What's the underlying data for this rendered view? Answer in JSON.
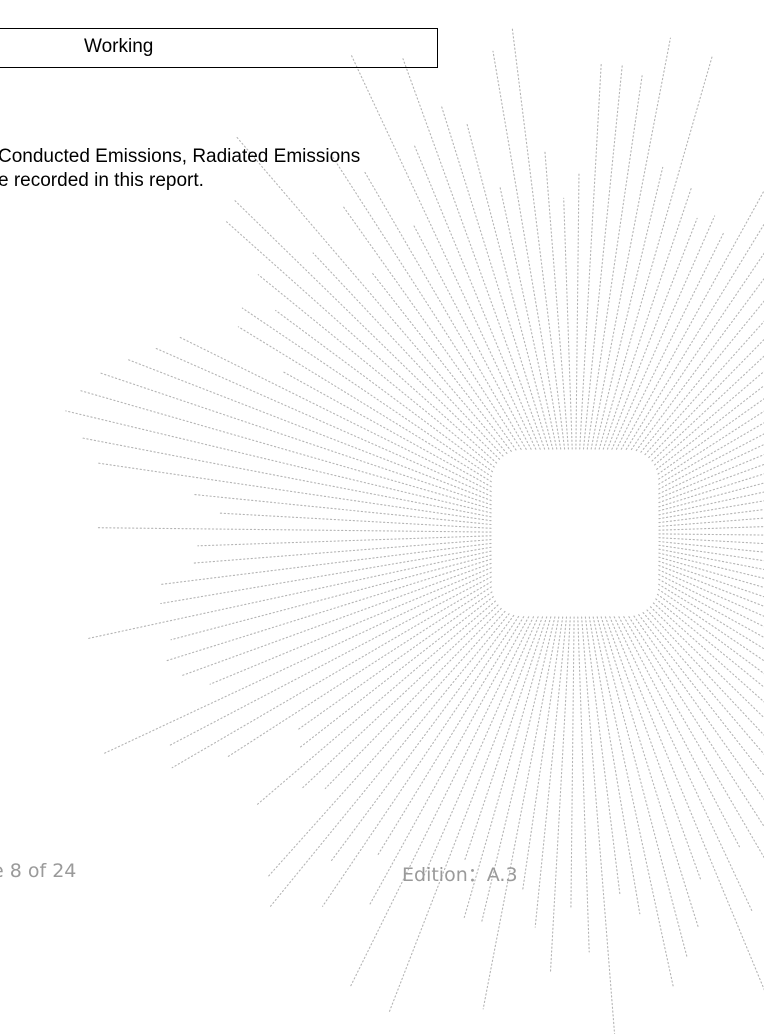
{
  "status": {
    "label": "Working"
  },
  "body": {
    "line1": "Conducted Emissions, Radiated Emissions",
    "line2": "e recorded in this report."
  },
  "footer": {
    "page": "e 8 of 24",
    "edition": "Edition：A.3"
  },
  "colors": {
    "watermark": "#b4b4b4",
    "footer_text": "#9a9a9a"
  }
}
